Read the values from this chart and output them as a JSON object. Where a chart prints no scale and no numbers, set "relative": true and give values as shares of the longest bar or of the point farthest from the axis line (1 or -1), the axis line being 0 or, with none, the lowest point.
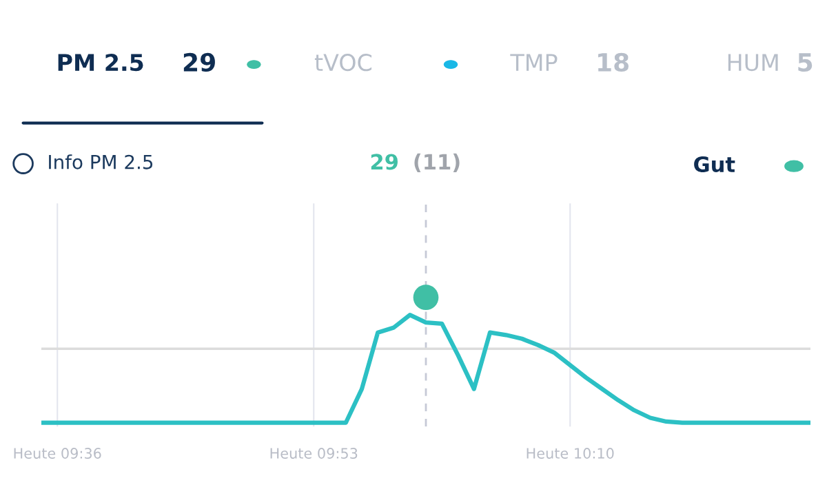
{
  "chart_data": {
    "type": "line",
    "relative": true,
    "grid": "x",
    "tick_labels": "x",
    "categories": [
      null,
      "Heute 09:36",
      null,
      null,
      null,
      null,
      null,
      null,
      null,
      null,
      null,
      null,
      null,
      null,
      null,
      null,
      null,
      "Heute 09:53",
      null,
      null,
      null,
      null,
      null,
      null,
      null,
      null,
      null,
      null,
      null,
      null,
      null,
      null,
      null,
      "Heute 10:10",
      null,
      null,
      null,
      null,
      null,
      null,
      null,
      null,
      null,
      null,
      null,
      null,
      null,
      null,
      null
    ],
    "series": [
      {
        "color": "#2cc0c4",
        "marker": "none",
        "values": [
          0,
          0,
          0,
          0,
          0,
          0,
          0,
          0,
          0,
          0,
          0,
          0,
          0,
          0,
          0,
          0,
          0,
          0,
          0,
          0,
          0.27,
          0.72,
          0.76,
          0.86,
          0.8,
          0.79,
          0.54,
          0.27,
          0.72,
          0.7,
          0.67,
          0.62,
          0.56,
          0.46,
          0.36,
          0.27,
          0.18,
          0.1,
          0.04,
          0.01,
          0,
          0,
          0,
          0,
          0,
          0,
          0,
          0,
          0
        ]
      },
      {
        "type": "scatter",
        "color": "#40bfa5",
        "marker": "circle",
        "values": [
          null,
          null,
          null,
          null,
          null,
          null,
          null,
          null,
          null,
          null,
          null,
          null,
          null,
          null,
          null,
          null,
          null,
          null,
          null,
          null,
          null,
          null,
          null,
          null,
          1,
          null,
          null,
          null,
          null,
          null,
          null,
          null,
          null,
          null,
          null,
          null,
          null,
          null,
          null,
          null,
          null,
          null,
          null,
          null,
          null,
          null,
          null,
          null,
          null
        ]
      }
    ],
    "ref_lines": [
      {
        "axis": "y",
        "value": 0.59,
        "color": "#dcdcdc",
        "line_style": "solid"
      }
    ],
    "annotations": [
      "PM 2.5",
      "29",
      "tVOC",
      "TMP",
      "18",
      "HUM",
      "5",
      "Info PM 2.5",
      "29",
      "(11)",
      "Gut"
    ]
  }
}
